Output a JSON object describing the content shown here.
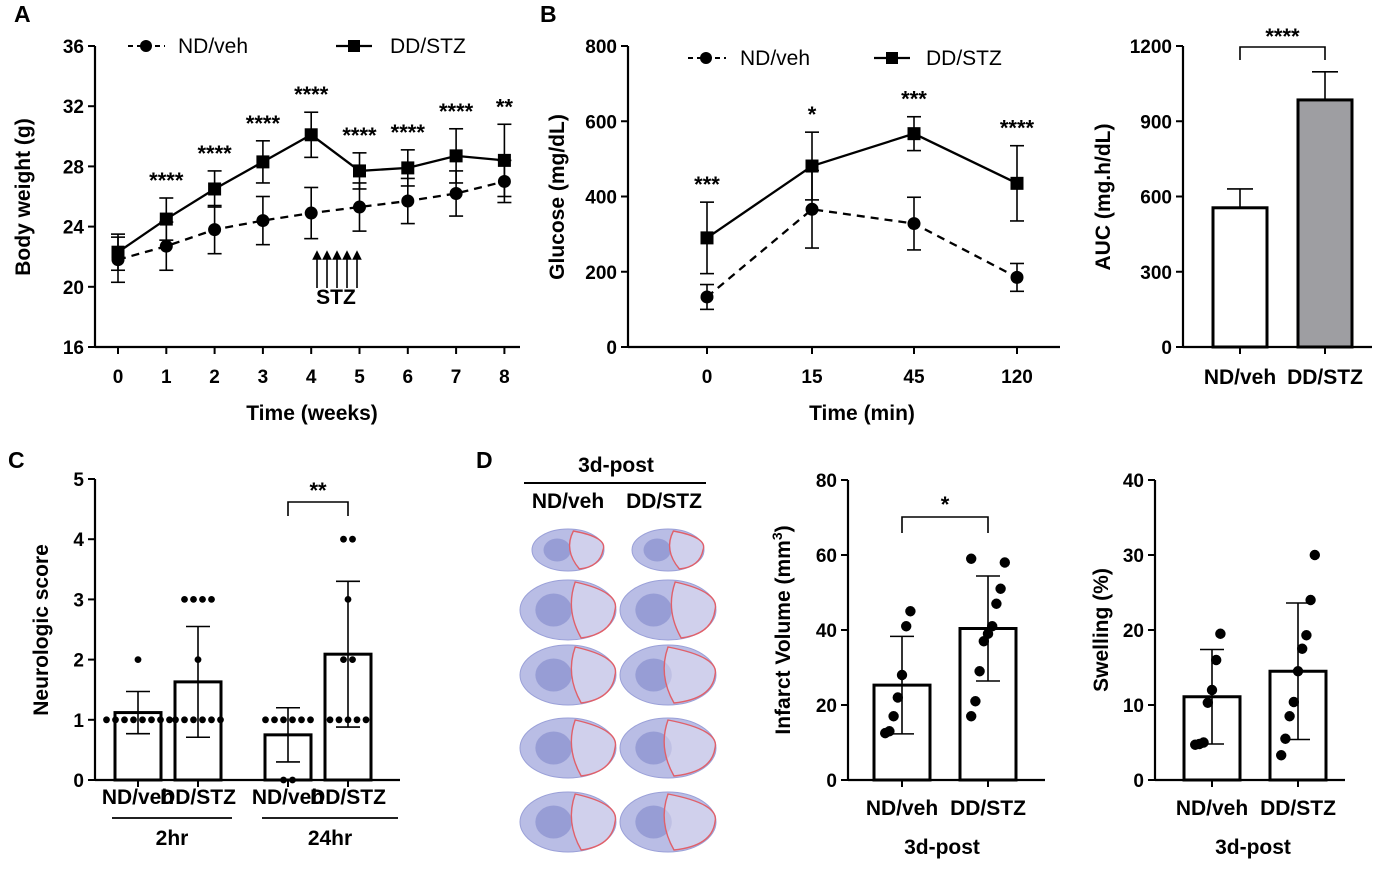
{
  "panels": {
    "a": "A",
    "b": "B",
    "c": "C",
    "d": "D"
  },
  "colors": {
    "dd_bar_fill": "#9e9ea2",
    "stain": "#7f86d0",
    "infarct_outline": "#e0606a"
  },
  "chart_data": [
    {
      "id": "A",
      "type": "line",
      "xlabel": "Time (weeks)",
      "ylabel": "Body weight (g)",
      "x": [
        0,
        1,
        2,
        3,
        4,
        5,
        6,
        7,
        8
      ],
      "ylim": [
        16,
        36
      ],
      "xticks": [
        "0",
        "1",
        "2",
        "3",
        "4",
        "5",
        "6",
        "7",
        "8"
      ],
      "yticks": [
        "16",
        "20",
        "24",
        "28",
        "32",
        "36"
      ],
      "series": [
        {
          "name": "ND/veh",
          "values": [
            21.8,
            22.7,
            23.8,
            24.4,
            24.9,
            25.3,
            25.7,
            26.2,
            27.0
          ],
          "err": [
            1.5,
            1.6,
            1.6,
            1.6,
            1.7,
            1.6,
            1.5,
            1.5,
            1.4
          ]
        },
        {
          "name": "DD/STZ",
          "values": [
            22.3,
            24.5,
            26.5,
            28.3,
            30.1,
            27.7,
            27.9,
            28.7,
            28.4
          ],
          "err": [
            1.2,
            1.4,
            1.2,
            1.4,
            1.5,
            1.2,
            1.2,
            1.8,
            2.4
          ]
        }
      ],
      "annotations": [
        "",
        "****",
        "****",
        "****",
        "****",
        "****",
        "****",
        "****",
        "**"
      ],
      "stz_label": "STZ"
    },
    {
      "id": "B1",
      "type": "line",
      "xlabel": "Time (min)",
      "ylabel": "Glucose (mg/dL)",
      "categories": [
        "0",
        "15",
        "45",
        "120"
      ],
      "ylim": [
        0,
        800
      ],
      "yticks": [
        "0",
        "200",
        "400",
        "600",
        "800"
      ],
      "series": [
        {
          "name": "ND/veh",
          "values": [
            133,
            366,
            328,
            185
          ],
          "err": [
            33,
            103,
            70,
            37
          ]
        },
        {
          "name": "DD/STZ",
          "values": [
            290,
            481,
            567,
            435
          ],
          "err": [
            95,
            90,
            45,
            100
          ]
        }
      ],
      "annotations": [
        "***",
        "*",
        "***",
        "****"
      ]
    },
    {
      "id": "B2",
      "type": "bar",
      "ylabel": "AUC (mg.h/dL)",
      "categories": [
        "ND/veh",
        "DD/STZ"
      ],
      "values": [
        555,
        985
      ],
      "err": [
        75,
        112
      ],
      "ylim": [
        0,
        1200
      ],
      "yticks": [
        "0",
        "300",
        "600",
        "900",
        "1200"
      ],
      "significance": "****"
    },
    {
      "id": "C",
      "type": "bar",
      "ylabel": "Neurologic score",
      "categories": [
        "ND/veh",
        "DD/STZ",
        "ND/veh",
        "DD/STZ"
      ],
      "groups": [
        "2hr",
        "24hr"
      ],
      "values": [
        1.12,
        1.63,
        0.75,
        2.09
      ],
      "err": [
        0.35,
        0.92,
        0.45,
        1.21
      ],
      "ylim": [
        0,
        5
      ],
      "yticks": [
        "0",
        "1",
        "2",
        "3",
        "4",
        "5"
      ],
      "points": [
        [
          1,
          1,
          1,
          1,
          1,
          1,
          1,
          1,
          2
        ],
        [
          1,
          1,
          1,
          1,
          1,
          1,
          2,
          3,
          3,
          3,
          3
        ],
        [
          0,
          0,
          1,
          1,
          1,
          1,
          1,
          1
        ],
        [
          1,
          1,
          1,
          1,
          1,
          2,
          2,
          3,
          4,
          4
        ]
      ],
      "significance": "**"
    },
    {
      "id": "D1",
      "type": "bar",
      "ylabel": "Infarct Volume (mm",
      "ylabel_sup": "3",
      "ylabel_end": ")",
      "xgroup": "3d-post",
      "categories": [
        "ND/veh",
        "DD/STZ"
      ],
      "values": [
        25.3,
        40.4
      ],
      "err": [
        13,
        14
      ],
      "ylim": [
        0,
        80
      ],
      "yticks": [
        "0",
        "20",
        "40",
        "60",
        "80"
      ],
      "points": [
        [
          12.5,
          13,
          17,
          22,
          28,
          41,
          45
        ],
        [
          17,
          21,
          29,
          37,
          39,
          41,
          47,
          51,
          58,
          59
        ]
      ],
      "significance": "*"
    },
    {
      "id": "D2",
      "type": "bar",
      "ylabel": "Swelling (%)",
      "xgroup": "3d-post",
      "categories": [
        "ND/veh",
        "DD/STZ"
      ],
      "values": [
        11.1,
        14.5
      ],
      "err": [
        6.3,
        9.1
      ],
      "ylim": [
        0,
        40
      ],
      "yticks": [
        "0",
        "10",
        "20",
        "30",
        "40"
      ],
      "points": [
        [
          4.7,
          4.8,
          5,
          10.3,
          12,
          16,
          19.5
        ],
        [
          3.3,
          5.5,
          8.5,
          10.4,
          14.5,
          17.5,
          19.3,
          24,
          30
        ]
      ]
    }
  ],
  "slices": {
    "header": "3d-post",
    "columns": [
      "ND/veh",
      "DD/STZ"
    ]
  }
}
